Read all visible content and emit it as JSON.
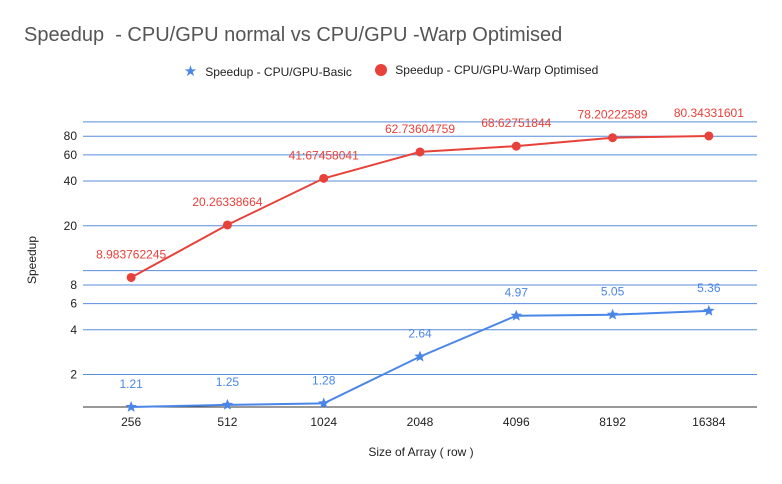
{
  "chart_data": {
    "type": "line",
    "title": "Speedup  - CPU/GPU normal vs CPU/GPU -Warp Optimised",
    "xlabel": "Size of Array ( row )",
    "ylabel": "Speedup",
    "categories": [
      "256",
      "512",
      "1024",
      "2048",
      "4096",
      "8192",
      "16384"
    ],
    "y_scale": "log",
    "yticks": [
      2,
      4,
      6,
      8,
      20,
      40,
      60,
      80
    ],
    "ylim": [
      1.21,
      100
    ],
    "legend_position": "top",
    "grid": true,
    "series": [
      {
        "name": "Speedup - CPU/GPU-Basic",
        "marker": "star",
        "color": "#4a86e8",
        "values": [
          1.21,
          1.25,
          1.28,
          2.64,
          4.97,
          5.05,
          5.36
        ],
        "labels": [
          "1.21",
          "1.25",
          "1.28",
          "2.64",
          "4.97",
          "5.05",
          "5.36"
        ]
      },
      {
        "name": "Speedup - CPU/GPU-Warp Optimised",
        "marker": "circle",
        "color": "#e8413a",
        "values": [
          8.983762245,
          20.26338664,
          41.67458041,
          62.73604759,
          68.62751844,
          78.20222589,
          80.34331601
        ],
        "labels": [
          "8.983762245",
          "20.26338664",
          "41:67458041",
          "62.73604759",
          "68:62751844",
          "78.20222589",
          "80.34331601"
        ]
      }
    ]
  }
}
